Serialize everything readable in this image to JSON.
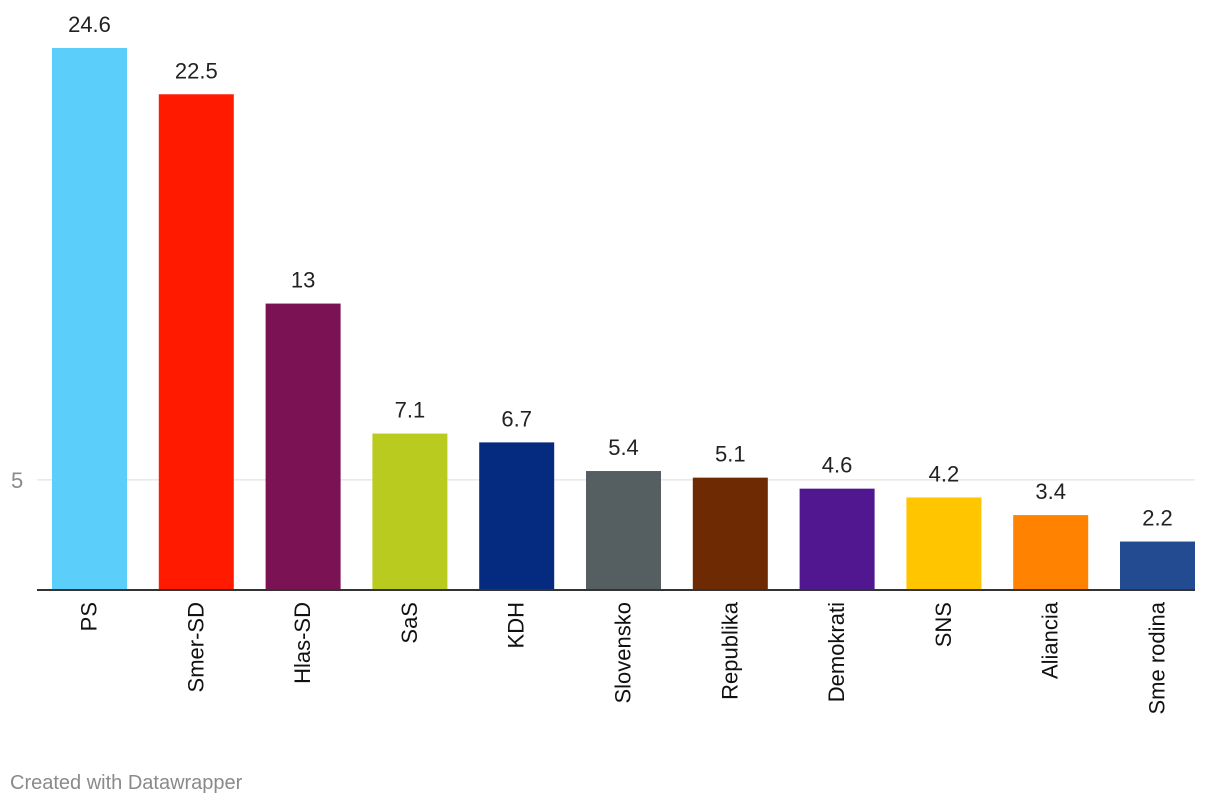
{
  "chart_data": {
    "type": "bar",
    "categories": [
      "PS",
      "Smer-SD",
      "Hlas-SD",
      "SaS",
      "KDH",
      "Slovensko",
      "Republika",
      "Demokrati",
      "SNS",
      "Aliancia",
      "Sme rodina"
    ],
    "values": [
      24.6,
      22.5,
      13,
      7.1,
      6.7,
      5.4,
      5.1,
      4.6,
      4.2,
      3.4,
      2.2
    ],
    "value_labels": [
      "24.6",
      "22.5",
      "13",
      "7.1",
      "6.7",
      "5.4",
      "5.1",
      "4.6",
      "4.2",
      "3.4",
      "2.2"
    ],
    "colors": [
      "#5ccefa",
      "#ff1a00",
      "#7a1254",
      "#b9cb1f",
      "#052b80",
      "#555f61",
      "#6e2a03",
      "#501791",
      "#ffc600",
      "#ff8200",
      "#224b91"
    ],
    "y_ticks": [
      5
    ],
    "y_tick_labels": [
      "5"
    ],
    "ylim": [
      0,
      24.6
    ],
    "title": "",
    "xlabel": "",
    "ylabel": ""
  },
  "footer": {
    "credit": "Created with Datawrapper"
  }
}
